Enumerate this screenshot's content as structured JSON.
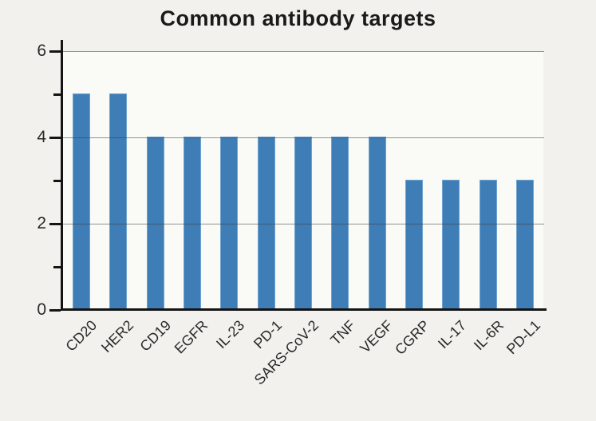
{
  "chart_data": {
    "type": "bar",
    "title": "Common antibody targets",
    "categories": [
      "CD20",
      "HER2",
      "CD19",
      "EGFR",
      "IL-23",
      "PD-1",
      "SARS-CoV-2",
      "TNF",
      "VEGF",
      "CGRP",
      "IL-17",
      "IL-6R",
      "PD-L1"
    ],
    "values": [
      5,
      5,
      4,
      4,
      4,
      4,
      4,
      4,
      4,
      3,
      3,
      3,
      3
    ],
    "xlabel": "",
    "ylabel": "",
    "ylim": [
      0,
      6
    ],
    "yticks_labeled": [
      0,
      2,
      4,
      6
    ],
    "yticks_minor": [
      1,
      3,
      5
    ],
    "gridline_values": [
      2,
      4,
      6
    ],
    "grid": "horizontal",
    "legend_position": "none",
    "x_tick_rotation_deg": 45,
    "colors": {
      "bar_fill": "#3f7db7",
      "bar_edge": "#6fa3cf",
      "axis": "#141414",
      "gridline": "#8c8c8c",
      "title_text": "#1b1a18",
      "tick_label_text": "#2a2a28",
      "page_background": "#f2f1ee",
      "plot_background": "#fafaf7"
    }
  }
}
